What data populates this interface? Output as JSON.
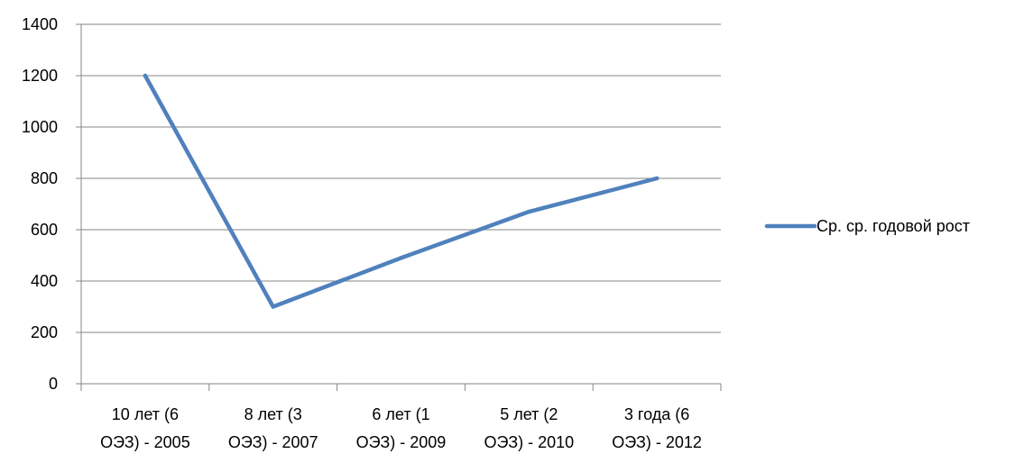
{
  "chart_data": {
    "type": "line",
    "categories": [
      [
        "10 лет (6",
        "ОЭЗ) - 2005"
      ],
      [
        "8 лет (3",
        "ОЭЗ) - 2007"
      ],
      [
        "6 лет (1",
        "ОЭЗ) - 2009"
      ],
      [
        "5 лет (2",
        "ОЭЗ) - 2010"
      ],
      [
        "3 года (6",
        "ОЭЗ) - 2012"
      ]
    ],
    "series": [
      {
        "name": "Ср. ср. годовой рост",
        "values": [
          1200,
          300,
          490,
          670,
          800
        ],
        "color": "#4f81bd"
      }
    ],
    "yticks": [
      "0",
      "200",
      "400",
      "600",
      "800",
      "1000",
      "1200",
      "1400"
    ],
    "ylim": [
      0,
      1400
    ],
    "title": "",
    "xlabel": "",
    "ylabel": "",
    "grid": true,
    "legend_position": "right",
    "colors": {
      "gridline": "#868686",
      "axis": "#868686",
      "text": "#000000"
    }
  }
}
